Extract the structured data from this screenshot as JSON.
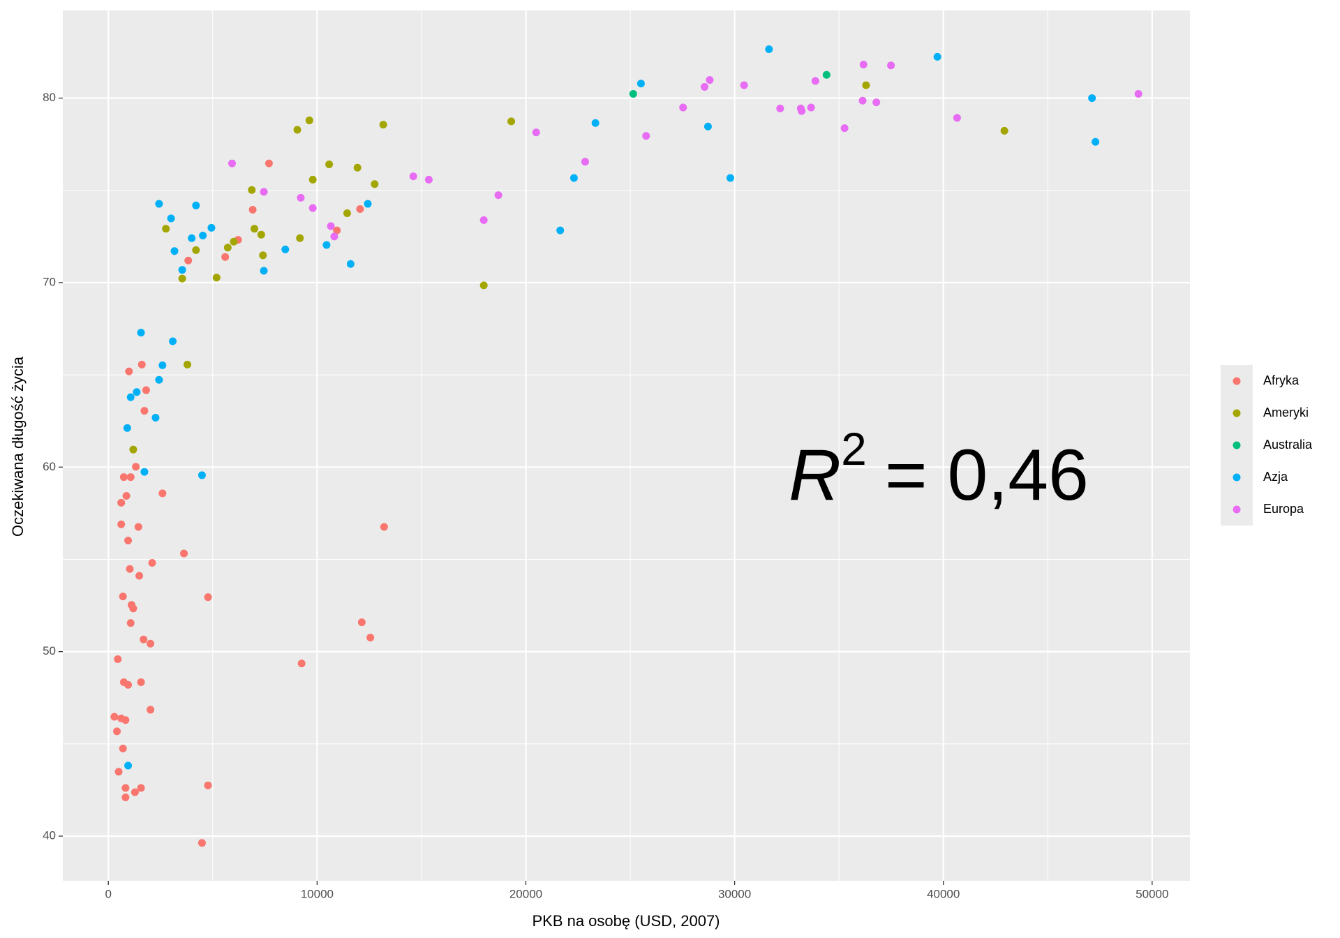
{
  "chart_data": {
    "type": "scatter",
    "x_label": "PKB na osobę (USD, 2007)",
    "y_label": "Oczekiwana długość życia",
    "annotation": {
      "base": "R",
      "exponent": "2",
      "text": "= 0,46"
    },
    "xlim": [
      -2181,
      51811
    ],
    "ylim": [
      37.58,
      84.75
    ],
    "xticks": [
      0,
      10000,
      20000,
      30000,
      40000,
      50000
    ],
    "yticks": [
      40,
      50,
      60,
      70,
      80
    ],
    "grid": true,
    "legend": "right",
    "series": [
      {
        "name": "Afryka",
        "color": "#F8766D",
        "x": [
          288,
          412,
          453,
          494,
          617,
          617,
          617,
          700,
          700,
          741,
          741,
          823,
          823,
          823,
          864,
          947,
          947,
          988,
          1029,
          1070,
          1070,
          1111,
          1193,
          1276,
          1317,
          1440,
          1481,
          1564,
          1564,
          1605,
          1687,
          1728,
          1811,
          2016,
          2016,
          2099,
          2593,
          3621,
          3827,
          4486,
          4774,
          4774,
          5597,
          6214,
          6914,
          7695,
          9259,
          10947,
          12058,
          12140,
          12551,
          13210
        ],
        "values": [
          46.47,
          45.68,
          49.59,
          43.49,
          58.07,
          56.9,
          46.38,
          52.99,
          44.75,
          59.46,
          48.34,
          46.29,
          42.61,
          42.1,
          58.44,
          48.2,
          56.02,
          65.19,
          54.48,
          59.46,
          51.55,
          52.53,
          52.34,
          42.38,
          60.02,
          56.76,
          54.11,
          48.34,
          42.61,
          65.56,
          50.66,
          63.05,
          64.17,
          50.43,
          46.85,
          54.81,
          58.58,
          55.32,
          71.2,
          39.63,
          52.95,
          42.75,
          71.39,
          72.32,
          73.95,
          76.46,
          49.36,
          72.83,
          73.99,
          51.59,
          50.76,
          56.76
        ]
      },
      {
        "name": "Ameryki",
        "color": "#A3A500",
        "x": [
          1193,
          2757,
          3539,
          3786,
          4198,
          5185,
          5720,
          6008,
          6872,
          6996,
          7325,
          7407,
          9053,
          9177,
          9630,
          9794,
          10576,
          11440,
          11934,
          12757,
          13169,
          17984,
          19300,
          36296,
          42922
        ],
        "values": [
          60.95,
          72.92,
          70.22,
          65.56,
          71.76,
          70.27,
          71.9,
          72.22,
          75.02,
          72.92,
          72.6,
          71.48,
          78.28,
          72.41,
          78.79,
          75.58,
          76.41,
          73.76,
          76.23,
          75.34,
          78.56,
          69.85,
          78.74,
          80.7,
          78.23
        ]
      },
      {
        "name": "Australia",
        "color": "#00BF7D",
        "x": [
          25144,
          34403
        ],
        "values": [
          80.23,
          81.26
        ]
      },
      {
        "name": "Azja",
        "color": "#00B0F6",
        "x": [
          947,
          905,
          1070,
          1358,
          1564,
          1728,
          2263,
          2428,
          2428,
          2593,
          3004,
          3086,
          3169,
          3539,
          3992,
          4198,
          4486,
          4527,
          4938,
          7449,
          8477,
          10453,
          11605,
          12428,
          21646,
          22305,
          23333,
          25514,
          28724,
          29794,
          31646,
          39712,
          47119,
          47284
        ],
        "values": [
          43.82,
          62.12,
          63.79,
          64.07,
          67.29,
          59.74,
          62.68,
          74.27,
          64.73,
          65.52,
          73.48,
          66.82,
          71.71,
          70.69,
          72.41,
          74.18,
          59.56,
          72.55,
          72.97,
          70.64,
          71.8,
          72.04,
          71.01,
          74.27,
          72.83,
          75.67,
          78.65,
          80.79,
          78.46,
          75.67,
          82.65,
          82.24,
          80.0,
          77.63
        ]
      },
      {
        "name": "Europa",
        "color": "#E76BF3",
        "x": [
          5926,
          7449,
          9218,
          9794,
          10658,
          10823,
          14609,
          15350,
          17984,
          18683,
          20494,
          22840,
          25761,
          27531,
          28560,
          28807,
          30453,
          32181,
          33169,
          33210,
          33663,
          33868,
          35267,
          36132,
          36173,
          36790,
          37490,
          40658,
          49342
        ],
        "values": [
          76.46,
          74.92,
          74.6,
          74.04,
          73.06,
          72.5,
          75.76,
          75.58,
          73.39,
          74.74,
          78.14,
          76.55,
          77.95,
          79.49,
          80.61,
          80.98,
          80.7,
          79.44,
          79.44,
          79.3,
          79.49,
          80.93,
          78.37,
          79.86,
          81.82,
          79.77,
          81.77,
          78.93,
          80.23
        ]
      }
    ]
  }
}
